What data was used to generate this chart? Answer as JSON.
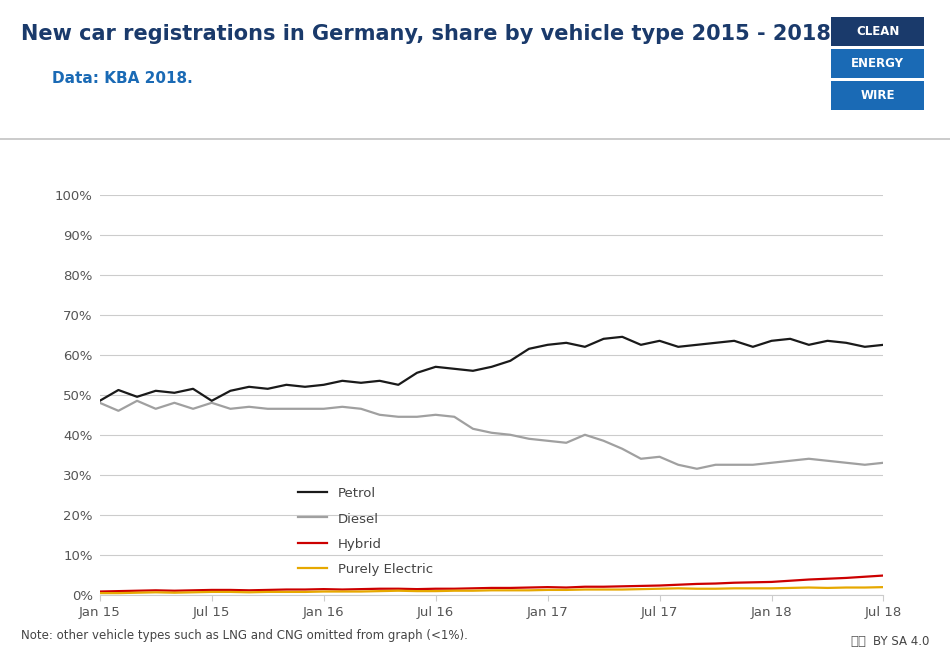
{
  "title": "New car registrations in Germany, share by vehicle type 2015 - 2018.",
  "subtitle": "Data: KBA 2018.",
  "note": "Note: other vehicle types such as LNG and CNG omitted from graph (<1%).",
  "title_color": "#1a3a6b",
  "subtitle_color": "#1a6ab5",
  "background_color": "#ffffff",
  "x_labels": [
    "Jan 15",
    "Jul 15",
    "Jan 16",
    "Jul 16",
    "Jan 17",
    "Jul 17",
    "Jan 18",
    "Jul 18"
  ],
  "x_positions": [
    0,
    6,
    12,
    18,
    24,
    30,
    36,
    42
  ],
  "petrol": [
    48.5,
    51.2,
    49.5,
    51.0,
    50.5,
    51.5,
    48.5,
    51.0,
    52.0,
    51.5,
    52.5,
    52.0,
    52.5,
    53.5,
    53.0,
    53.5,
    52.5,
    55.5,
    57.0,
    56.5,
    56.0,
    57.0,
    58.5,
    61.5,
    62.5,
    63.0,
    62.0,
    64.0,
    64.5,
    62.5,
    63.5,
    62.0,
    62.5,
    63.0,
    63.5,
    62.0,
    63.5,
    64.0,
    62.5,
    63.5,
    63.0,
    62.0,
    62.5
  ],
  "diesel": [
    48.0,
    46.0,
    48.5,
    46.5,
    48.0,
    46.5,
    48.0,
    46.5,
    47.0,
    46.5,
    46.5,
    46.5,
    46.5,
    47.0,
    46.5,
    45.0,
    44.5,
    44.5,
    45.0,
    44.5,
    41.5,
    40.5,
    40.0,
    39.0,
    38.5,
    38.0,
    40.0,
    38.5,
    36.5,
    34.0,
    34.5,
    32.5,
    31.5,
    32.5,
    32.5,
    32.5,
    33.0,
    33.5,
    34.0,
    33.5,
    33.0,
    32.5,
    33.0
  ],
  "hybrid": [
    0.8,
    0.9,
    1.0,
    1.1,
    1.0,
    1.1,
    1.2,
    1.2,
    1.1,
    1.2,
    1.3,
    1.3,
    1.4,
    1.3,
    1.4,
    1.5,
    1.5,
    1.4,
    1.5,
    1.5,
    1.6,
    1.7,
    1.7,
    1.8,
    1.9,
    1.8,
    2.0,
    2.0,
    2.1,
    2.2,
    2.3,
    2.5,
    2.7,
    2.8,
    3.0,
    3.1,
    3.2,
    3.5,
    3.8,
    4.0,
    4.2,
    4.5,
    4.8
  ],
  "electric": [
    0.4,
    0.4,
    0.5,
    0.6,
    0.5,
    0.6,
    0.7,
    0.7,
    0.6,
    0.7,
    0.7,
    0.7,
    0.8,
    0.8,
    0.8,
    0.9,
    1.0,
    0.9,
    0.9,
    1.0,
    1.0,
    1.1,
    1.1,
    1.1,
    1.2,
    1.2,
    1.3,
    1.3,
    1.3,
    1.4,
    1.5,
    1.6,
    1.5,
    1.5,
    1.6,
    1.6,
    1.6,
    1.7,
    1.8,
    1.7,
    1.8,
    1.8,
    1.9
  ],
  "petrol_color": "#1a1a1a",
  "diesel_color": "#a0a0a0",
  "hybrid_color": "#cc0000",
  "electric_color": "#e6a800",
  "ylim": [
    0,
    100
  ],
  "yticks": [
    0,
    10,
    20,
    30,
    40,
    50,
    60,
    70,
    80,
    90,
    100
  ],
  "grid_color": "#cccccc",
  "logo_clean_color": "#1a3a6b",
  "logo_energy_color": "#1a6ab5",
  "logo_wire_color": "#1a6ab5"
}
